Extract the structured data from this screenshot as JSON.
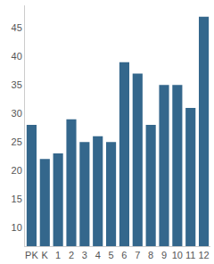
{
  "chart_data": {
    "type": "bar",
    "categories": [
      "PK",
      "K",
      "1",
      "2",
      "3",
      "4",
      "5",
      "6",
      "7",
      "8",
      "9",
      "10",
      "11",
      "12"
    ],
    "values": [
      28,
      22,
      23,
      29,
      25,
      26,
      25,
      39,
      37,
      28,
      35,
      35,
      31,
      47
    ],
    "color": "#34678c",
    "ylim": [
      6.7,
      49
    ],
    "yticks": [
      10,
      15,
      20,
      25,
      30,
      35,
      40,
      45
    ],
    "grid": false
  }
}
